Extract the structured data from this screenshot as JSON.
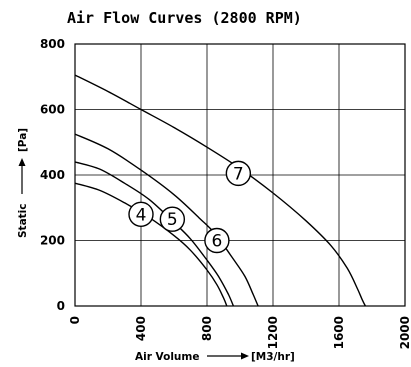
{
  "chart_data": {
    "type": "line",
    "title": "Air Flow Curves (2800 RPM)",
    "xlabel": "Air Volume",
    "xunit": "[M3/hr]",
    "ylabel": "Static",
    "yunit": "[Pa]",
    "xlim": [
      0,
      2000
    ],
    "ylim": [
      0,
      800
    ],
    "xticks": [
      0,
      400,
      800,
      1200,
      1600,
      2000
    ],
    "yticks": [
      0,
      200,
      400,
      600,
      800
    ],
    "grid": true,
    "legend": "none",
    "series": [
      {
        "name": "4",
        "x": [
          0,
          150,
          300,
          450,
          600,
          700,
          800,
          860,
          900,
          920
        ],
        "y": [
          375,
          353,
          315,
          270,
          215,
          170,
          110,
          65,
          25,
          0
        ]
      },
      {
        "name": "5",
        "x": [
          0,
          150,
          300,
          450,
          600,
          700,
          800,
          870,
          930,
          960
        ],
        "y": [
          440,
          418,
          375,
          325,
          255,
          205,
          140,
          90,
          35,
          0
        ]
      },
      {
        "name": "6",
        "x": [
          0,
          200,
          400,
          600,
          750,
          850,
          950,
          1030,
          1080,
          1110
        ],
        "y": [
          525,
          480,
          415,
          340,
          270,
          220,
          150,
          90,
          35,
          0
        ]
      },
      {
        "name": "7",
        "x": [
          0,
          200,
          400,
          600,
          800,
          1000,
          1200,
          1400,
          1550,
          1650,
          1710,
          1740,
          1760
        ],
        "y": [
          705,
          655,
          600,
          545,
          485,
          420,
          345,
          260,
          185,
          115,
          55,
          20,
          0
        ]
      }
    ],
    "curve_labels": [
      {
        "text": "4",
        "x": 400,
        "y": 280
      },
      {
        "text": "5",
        "x": 590,
        "y": 265
      },
      {
        "text": "6",
        "x": 860,
        "y": 200
      },
      {
        "text": "7",
        "x": 990,
        "y": 405
      }
    ]
  }
}
